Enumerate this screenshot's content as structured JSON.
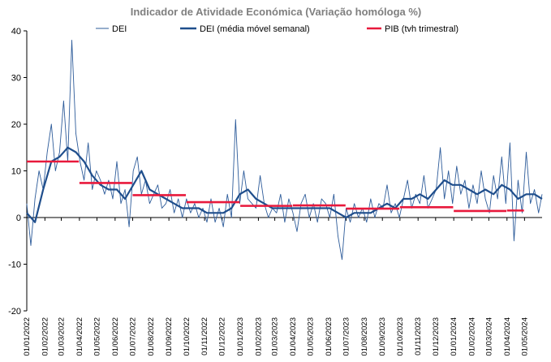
{
  "chart_data": {
    "type": "line",
    "title": "Indicador de Atividade Económica (Variação homóloga %)",
    "ylim": [
      -20,
      40
    ],
    "yticks": [
      -20,
      -10,
      0,
      10,
      20,
      30,
      40
    ],
    "xlim": [
      "2022-01-01",
      "2024-05-31"
    ],
    "xtick_labels": [
      "01/01/2022",
      "01/02/2022",
      "01/03/2022",
      "01/04/2022",
      "01/05/2022",
      "01/06/2022",
      "01/07/2022",
      "01/08/2022",
      "01/09/2022",
      "01/10/2022",
      "01/11/2022",
      "01/12/2022",
      "01/01/2023",
      "01/02/2023",
      "01/03/2023",
      "01/04/2023",
      "01/05/2023",
      "01/06/2023",
      "01/07/2023",
      "01/08/2023",
      "01/09/2023",
      "01/10/2023",
      "01/11/2023",
      "01/12/2023",
      "01/01/2024",
      "01/02/2024",
      "01/03/2024",
      "01/04/2024",
      "01/05/2024"
    ],
    "legend_position": "top",
    "grid": false,
    "series": [
      {
        "name": "DEI",
        "style": "thin-line",
        "color": "#2e5c9a",
        "points": [
          [
            "2022-01-01",
            3
          ],
          [
            "2022-01-08",
            -6
          ],
          [
            "2022-01-15",
            4
          ],
          [
            "2022-01-22",
            10
          ],
          [
            "2022-01-29",
            6
          ],
          [
            "2022-02-05",
            14
          ],
          [
            "2022-02-12",
            20
          ],
          [
            "2022-02-19",
            10
          ],
          [
            "2022-02-26",
            14
          ],
          [
            "2022-03-05",
            25
          ],
          [
            "2022-03-12",
            12
          ],
          [
            "2022-03-19",
            38
          ],
          [
            "2022-03-26",
            18
          ],
          [
            "2022-04-02",
            12
          ],
          [
            "2022-04-09",
            8
          ],
          [
            "2022-04-16",
            16
          ],
          [
            "2022-04-23",
            6
          ],
          [
            "2022-04-30",
            10
          ],
          [
            "2022-05-07",
            8
          ],
          [
            "2022-05-14",
            5
          ],
          [
            "2022-05-21",
            8
          ],
          [
            "2022-05-28",
            4
          ],
          [
            "2022-06-04",
            12
          ],
          [
            "2022-06-11",
            3
          ],
          [
            "2022-06-18",
            6
          ],
          [
            "2022-06-25",
            -2
          ],
          [
            "2022-07-02",
            10
          ],
          [
            "2022-07-09",
            13
          ],
          [
            "2022-07-16",
            5
          ],
          [
            "2022-07-23",
            8
          ],
          [
            "2022-07-30",
            3
          ],
          [
            "2022-08-06",
            5
          ],
          [
            "2022-08-13",
            7
          ],
          [
            "2022-08-20",
            2
          ],
          [
            "2022-08-27",
            3
          ],
          [
            "2022-09-03",
            6
          ],
          [
            "2022-09-10",
            1
          ],
          [
            "2022-09-17",
            4
          ],
          [
            "2022-09-24",
            0
          ],
          [
            "2022-10-01",
            4
          ],
          [
            "2022-10-08",
            1
          ],
          [
            "2022-10-15",
            3
          ],
          [
            "2022-10-22",
            0
          ],
          [
            "2022-10-29",
            2
          ],
          [
            "2022-11-05",
            -1
          ],
          [
            "2022-11-12",
            4
          ],
          [
            "2022-11-19",
            -1
          ],
          [
            "2022-11-26",
            2
          ],
          [
            "2022-12-03",
            -2
          ],
          [
            "2022-12-10",
            5
          ],
          [
            "2022-12-17",
            0
          ],
          [
            "2022-12-24",
            21
          ],
          [
            "2022-12-31",
            3
          ],
          [
            "2023-01-07",
            10
          ],
          [
            "2023-01-14",
            4
          ],
          [
            "2023-01-21",
            3
          ],
          [
            "2023-01-28",
            2
          ],
          [
            "2023-02-04",
            9
          ],
          [
            "2023-02-11",
            3
          ],
          [
            "2023-02-18",
            0
          ],
          [
            "2023-02-25",
            2
          ],
          [
            "2023-03-04",
            1
          ],
          [
            "2023-03-11",
            5
          ],
          [
            "2023-03-18",
            -1
          ],
          [
            "2023-03-25",
            4
          ],
          [
            "2023-04-01",
            1
          ],
          [
            "2023-04-08",
            -3
          ],
          [
            "2023-04-15",
            3
          ],
          [
            "2023-04-22",
            5
          ],
          [
            "2023-04-29",
            0
          ],
          [
            "2023-05-06",
            3
          ],
          [
            "2023-05-13",
            -1
          ],
          [
            "2023-05-20",
            4
          ],
          [
            "2023-05-27",
            3
          ],
          [
            "2023-06-03",
            0
          ],
          [
            "2023-06-10",
            5
          ],
          [
            "2023-06-17",
            -4
          ],
          [
            "2023-06-24",
            -9
          ],
          [
            "2023-07-01",
            2
          ],
          [
            "2023-07-08",
            -1
          ],
          [
            "2023-07-15",
            3
          ],
          [
            "2023-07-22",
            0
          ],
          [
            "2023-07-29",
            2
          ],
          [
            "2023-08-05",
            -1
          ],
          [
            "2023-08-12",
            4
          ],
          [
            "2023-08-19",
            0
          ],
          [
            "2023-08-26",
            3
          ],
          [
            "2023-09-02",
            2
          ],
          [
            "2023-09-09",
            7
          ],
          [
            "2023-09-16",
            1
          ],
          [
            "2023-09-23",
            3
          ],
          [
            "2023-09-30",
            0
          ],
          [
            "2023-10-07",
            4
          ],
          [
            "2023-10-14",
            8
          ],
          [
            "2023-10-21",
            2
          ],
          [
            "2023-10-28",
            5
          ],
          [
            "2023-11-04",
            3
          ],
          [
            "2023-11-11",
            9
          ],
          [
            "2023-11-18",
            2
          ],
          [
            "2023-11-25",
            4
          ],
          [
            "2023-12-02",
            6
          ],
          [
            "2023-12-09",
            15
          ],
          [
            "2023-12-16",
            4
          ],
          [
            "2023-12-23",
            10
          ],
          [
            "2023-12-30",
            3
          ],
          [
            "2024-01-06",
            11
          ],
          [
            "2024-01-13",
            5
          ],
          [
            "2024-01-20",
            8
          ],
          [
            "2024-01-27",
            2
          ],
          [
            "2024-02-03",
            7
          ],
          [
            "2024-02-10",
            3
          ],
          [
            "2024-02-17",
            10
          ],
          [
            "2024-02-24",
            4
          ],
          [
            "2024-03-02",
            1
          ],
          [
            "2024-03-09",
            9
          ],
          [
            "2024-03-16",
            4
          ],
          [
            "2024-03-23",
            13
          ],
          [
            "2024-03-30",
            3
          ],
          [
            "2024-04-06",
            16
          ],
          [
            "2024-04-13",
            -5
          ],
          [
            "2024-04-20",
            8
          ],
          [
            "2024-04-27",
            1
          ],
          [
            "2024-05-04",
            14
          ],
          [
            "2024-05-11",
            3
          ],
          [
            "2024-05-18",
            6
          ],
          [
            "2024-05-25",
            1
          ],
          [
            "2024-05-31",
            5
          ]
        ]
      },
      {
        "name": "DEI (média móvel semanal)",
        "style": "thick-line",
        "color": "#1f4e8c",
        "points": [
          [
            "2022-01-01",
            1
          ],
          [
            "2022-01-15",
            -1
          ],
          [
            "2022-01-29",
            6
          ],
          [
            "2022-02-12",
            12
          ],
          [
            "2022-02-26",
            13
          ],
          [
            "2022-03-12",
            15
          ],
          [
            "2022-03-26",
            14
          ],
          [
            "2022-04-09",
            12
          ],
          [
            "2022-04-23",
            9
          ],
          [
            "2022-05-07",
            7
          ],
          [
            "2022-05-21",
            6
          ],
          [
            "2022-06-04",
            6
          ],
          [
            "2022-06-18",
            4
          ],
          [
            "2022-07-02",
            7
          ],
          [
            "2022-07-16",
            10
          ],
          [
            "2022-07-30",
            6
          ],
          [
            "2022-08-13",
            5
          ],
          [
            "2022-08-27",
            4
          ],
          [
            "2022-09-10",
            3
          ],
          [
            "2022-09-24",
            2
          ],
          [
            "2022-10-08",
            2
          ],
          [
            "2022-10-22",
            2
          ],
          [
            "2022-11-05",
            1
          ],
          [
            "2022-11-19",
            1
          ],
          [
            "2022-12-03",
            1
          ],
          [
            "2022-12-17",
            2
          ],
          [
            "2022-12-31",
            5
          ],
          [
            "2023-01-14",
            6
          ],
          [
            "2023-01-28",
            4
          ],
          [
            "2023-02-11",
            3
          ],
          [
            "2023-02-25",
            2
          ],
          [
            "2023-03-11",
            2
          ],
          [
            "2023-03-25",
            2
          ],
          [
            "2023-04-08",
            2
          ],
          [
            "2023-04-22",
            2
          ],
          [
            "2023-05-06",
            2
          ],
          [
            "2023-05-20",
            2
          ],
          [
            "2023-06-03",
            2
          ],
          [
            "2023-06-17",
            1
          ],
          [
            "2023-07-01",
            0
          ],
          [
            "2023-07-15",
            1
          ],
          [
            "2023-07-29",
            1
          ],
          [
            "2023-08-12",
            1
          ],
          [
            "2023-08-26",
            2
          ],
          [
            "2023-09-09",
            3
          ],
          [
            "2023-09-23",
            2
          ],
          [
            "2023-10-07",
            4
          ],
          [
            "2023-10-21",
            4
          ],
          [
            "2023-11-04",
            5
          ],
          [
            "2023-11-18",
            4
          ],
          [
            "2023-12-02",
            6
          ],
          [
            "2023-12-16",
            8
          ],
          [
            "2023-12-30",
            7
          ],
          [
            "2024-01-13",
            7
          ],
          [
            "2024-01-27",
            6
          ],
          [
            "2024-02-10",
            5
          ],
          [
            "2024-02-24",
            6
          ],
          [
            "2024-03-09",
            5
          ],
          [
            "2024-03-23",
            7
          ],
          [
            "2024-04-06",
            6
          ],
          [
            "2024-04-20",
            4
          ],
          [
            "2024-05-04",
            5
          ],
          [
            "2024-05-18",
            5
          ],
          [
            "2024-05-31",
            4
          ]
        ]
      },
      {
        "name": "PIB (tvh trimestral)",
        "style": "step-segments",
        "color": "#e8193c",
        "segments": [
          {
            "from": "2022-01-01",
            "to": "2022-03-31",
            "value": 12.0
          },
          {
            "from": "2022-04-01",
            "to": "2022-06-30",
            "value": 7.4
          },
          {
            "from": "2022-07-01",
            "to": "2022-09-30",
            "value": 4.8
          },
          {
            "from": "2022-10-01",
            "to": "2022-12-31",
            "value": 3.3
          },
          {
            "from": "2023-01-01",
            "to": "2023-03-31",
            "value": 2.5
          },
          {
            "from": "2023-04-01",
            "to": "2023-06-30",
            "value": 2.6
          },
          {
            "from": "2023-07-01",
            "to": "2023-09-30",
            "value": 1.9
          },
          {
            "from": "2023-10-01",
            "to": "2023-12-31",
            "value": 2.2
          },
          {
            "from": "2024-01-01",
            "to": "2024-03-31",
            "value": 1.4
          },
          {
            "from": "2024-04-01",
            "to": "2024-04-30",
            "value": 1.5
          }
        ]
      }
    ]
  }
}
